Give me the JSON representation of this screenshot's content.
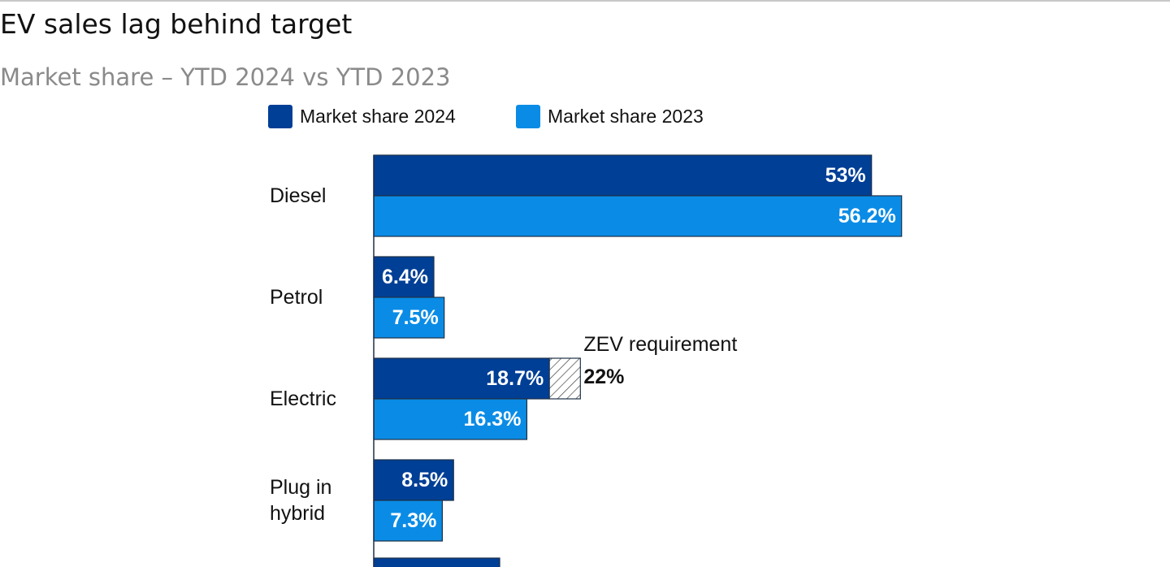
{
  "title": "EV sales lag behind target",
  "subtitle": "Market share – YTD 2024 vs YTD 2023",
  "colors": {
    "series_2024": "#003f96",
    "series_2023": "#0a8ce6",
    "bar_outline": "#1f3148",
    "axis": "#1f3148",
    "text": "#121212",
    "bar_text": "#ffffff"
  },
  "chart_data": {
    "type": "bar",
    "orientation": "horizontal",
    "categories": [
      "Diesel",
      "Petrol",
      "Electric",
      "Plug in hybrid"
    ],
    "series": [
      {
        "name": "Market share 2024",
        "values": [
          53,
          6.4,
          18.7,
          8.5
        ],
        "labels": [
          "53%",
          "6.4%",
          "18.7%",
          "8.5%"
        ]
      },
      {
        "name": "Market share 2023",
        "values": [
          56.2,
          7.5,
          16.3,
          7.3
        ],
        "labels": [
          "56.2%",
          "7.5%",
          "16.3%",
          "7.3%"
        ]
      }
    ],
    "legend_position": "top",
    "annotation": {
      "category": "Electric",
      "label": "ZEV requirement",
      "value": 22,
      "value_label": "22%",
      "style": "hatched"
    }
  }
}
